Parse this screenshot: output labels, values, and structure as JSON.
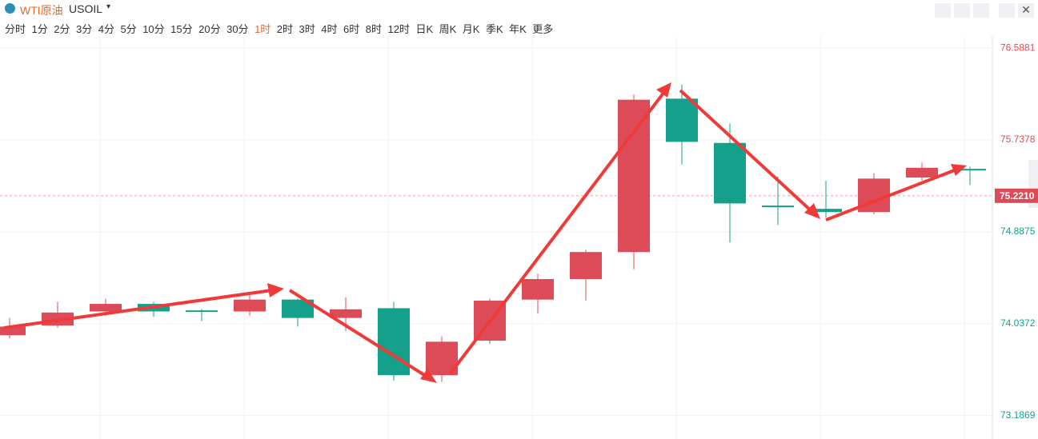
{
  "header": {
    "symbol_name": "WTI原油",
    "symbol_code": "USOIL",
    "periods": [
      "分时",
      "1分",
      "2分",
      "3分",
      "4分",
      "5分",
      "10分",
      "15分",
      "20分",
      "30分",
      "1时",
      "2时",
      "3时",
      "4时",
      "6时",
      "8时",
      "12时",
      "日K",
      "周K",
      "月K",
      "季K",
      "年K",
      "更多"
    ],
    "active_period_index": 10
  },
  "chart_data": {
    "type": "candlestick",
    "open": [
      73.93,
      74.02,
      74.15,
      74.22,
      74.16,
      74.15,
      74.26,
      74.09,
      74.18,
      73.56,
      73.88,
      74.26,
      74.45,
      74.7,
      76.12,
      75.71,
      75.13,
      75.1,
      75.07,
      75.39,
      75.47
    ],
    "high": [
      74.09,
      74.24,
      74.27,
      74.24,
      74.17,
      74.3,
      74.27,
      74.28,
      74.24,
      73.92,
      74.27,
      74.5,
      74.72,
      76.16,
      76.25,
      75.89,
      75.4,
      75.36,
      75.43,
      75.53,
      75.49
    ],
    "low": [
      73.9,
      74.0,
      74.11,
      74.1,
      74.06,
      74.11,
      74.01,
      73.97,
      73.51,
      73.5,
      73.85,
      74.13,
      74.25,
      74.54,
      75.51,
      74.79,
      74.95,
      75.02,
      75.05,
      75.36,
      75.32
    ],
    "close": [
      74.01,
      74.14,
      74.22,
      74.15,
      74.15,
      74.26,
      74.09,
      74.17,
      73.56,
      73.87,
      74.25,
      74.45,
      74.7,
      76.11,
      75.72,
      75.15,
      75.12,
      75.07,
      75.38,
      75.48,
      75.46
    ],
    "up_color": "#dc4b57",
    "down_color": "#14a08a",
    "ylim": [
      73.11,
      76.7
    ],
    "yticks": [
      73.1869,
      74.0372,
      74.8875,
      75.7378,
      76.5881
    ],
    "last_price": {
      "value": 75.221,
      "label": "75.2210"
    },
    "grid": true
  }
}
